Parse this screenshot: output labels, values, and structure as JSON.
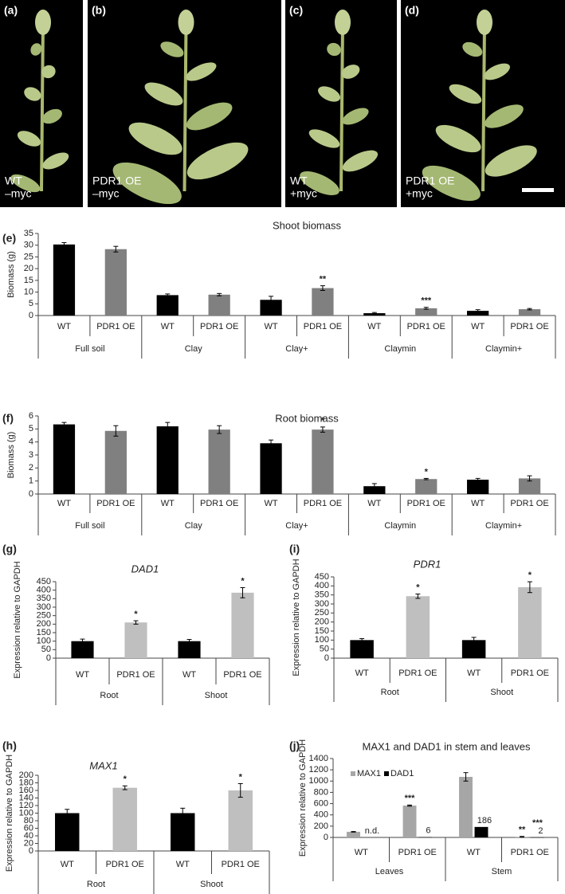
{
  "photos": [
    {
      "panel": "(a)",
      "caption": [
        "WT",
        "–myc"
      ]
    },
    {
      "panel": "(b)",
      "caption": [
        "PDR1 OE",
        "–myc"
      ]
    },
    {
      "panel": "(c)",
      "caption": [
        "WT",
        "+myc"
      ]
    },
    {
      "panel": "(d)",
      "caption": [
        "PDR1 OE",
        "+myc"
      ]
    }
  ],
  "chart_data": [
    {
      "type": "bar",
      "panel": "(e)",
      "title": "Shoot biomass",
      "y_label": "Biomass (g)",
      "categories": [
        "WT",
        "PDR1 OE",
        "WT",
        "PDR1 OE",
        "WT",
        "PDR1 OE",
        "WT",
        "PDR1 OE",
        "WT",
        "PDR1 OE"
      ],
      "groups": [
        "Full soil",
        "Clay",
        "Clay+",
        "Claymin",
        "Claymin+"
      ],
      "values": [
        30.3,
        28.3,
        8.7,
        8.9,
        6.7,
        11.7,
        1.0,
        3.1,
        2.0,
        2.7
      ],
      "errors": [
        0.8,
        1.2,
        0.5,
        0.5,
        1.5,
        1.0,
        0.3,
        0.4,
        0.5,
        0.3
      ],
      "annotations": [
        null,
        null,
        null,
        null,
        null,
        "**",
        null,
        "***",
        null,
        null
      ],
      "colors": [
        "#000000",
        "#808080",
        "#000000",
        "#808080",
        "#000000",
        "#808080",
        "#000000",
        "#808080",
        "#000000",
        "#808080"
      ],
      "ylim": [
        0,
        35
      ],
      "yticks": [
        0,
        5,
        10,
        15,
        20,
        25,
        30,
        35
      ]
    },
    {
      "type": "bar",
      "panel": "(f)",
      "title": "Root biomass",
      "y_label": "Biomass (g)",
      "categories": [
        "WT",
        "PDR1 OE",
        "WT",
        "PDR1 OE",
        "WT",
        "PDR1 OE",
        "WT",
        "PDR1 OE",
        "WT",
        "PDR1 OE"
      ],
      "groups": [
        "Full soil",
        "Clay",
        "Clay+",
        "Claymin",
        "Claymin+"
      ],
      "values": [
        5.35,
        4.85,
        5.2,
        4.95,
        3.9,
        4.95,
        0.6,
        1.15,
        1.1,
        1.2
      ],
      "errors": [
        0.15,
        0.4,
        0.3,
        0.3,
        0.25,
        0.2,
        0.2,
        0.05,
        0.1,
        0.2
      ],
      "annotations": [
        null,
        null,
        null,
        null,
        null,
        "*",
        null,
        "*",
        null,
        null
      ],
      "colors": [
        "#000000",
        "#808080",
        "#000000",
        "#808080",
        "#000000",
        "#808080",
        "#000000",
        "#808080",
        "#000000",
        "#808080"
      ],
      "ylim": [
        0,
        6
      ],
      "yticks": [
        0,
        1,
        2,
        3,
        4,
        5,
        6
      ]
    },
    {
      "type": "bar",
      "panel": "(g)",
      "title": "DAD1",
      "y_label": "Expression relative to GAPDH",
      "categories": [
        "WT",
        "PDR1 OE",
        "WT",
        "PDR1 OE"
      ],
      "groups": [
        "Root",
        "Shoot"
      ],
      "values": [
        100,
        210,
        100,
        385
      ],
      "errors": [
        12,
        10,
        10,
        30
      ],
      "annotations": [
        null,
        "*",
        null,
        "*"
      ],
      "colors": [
        "#000000",
        "#bfbfbf",
        "#000000",
        "#bfbfbf"
      ],
      "ylim": [
        0,
        450
      ],
      "yticks": [
        0,
        50,
        100,
        150,
        200,
        250,
        300,
        350,
        400,
        450
      ]
    },
    {
      "type": "bar",
      "panel": "(i)",
      "title": "PDR1",
      "y_label": "Expression relative to GAPDH",
      "categories": [
        "WT",
        "PDR1  OE",
        "WT",
        "PDR1  OE"
      ],
      "groups": [
        "Root",
        "Shoot"
      ],
      "values": [
        100,
        343,
        100,
        393
      ],
      "errors": [
        8,
        12,
        15,
        30
      ],
      "annotations": [
        null,
        "*",
        null,
        "*"
      ],
      "colors": [
        "#000000",
        "#bfbfbf",
        "#000000",
        "#bfbfbf"
      ],
      "ylim": [
        0,
        450
      ],
      "yticks": [
        0,
        50,
        100,
        150,
        200,
        250,
        300,
        350,
        400,
        450
      ]
    },
    {
      "type": "bar",
      "panel": "(h)",
      "title": "MAX1",
      "y_label": "Expression relative to GAPDH",
      "categories": [
        "WT",
        "PDR1 OE",
        "WT",
        "PDR1 OE"
      ],
      "groups": [
        "Root",
        "Shoot"
      ],
      "values": [
        100,
        167,
        100,
        160
      ],
      "errors": [
        10,
        5,
        13,
        18
      ],
      "annotations": [
        null,
        "*",
        null,
        "*"
      ],
      "colors": [
        "#000000",
        "#bfbfbf",
        "#000000",
        "#bfbfbf"
      ],
      "ylim": [
        0,
        200
      ],
      "yticks": [
        0,
        20,
        40,
        60,
        80,
        100,
        120,
        140,
        160,
        180,
        200
      ]
    },
    {
      "type": "bar",
      "panel": "(j)",
      "title": "MAX1 and DAD1 in stem and leaves",
      "y_label": "Expression relative to GAPDH",
      "categories": [
        "WT",
        "PDR1 OE",
        "WT",
        "PDR1 OE"
      ],
      "groups": [
        "Leaves",
        "Stem"
      ],
      "series": [
        {
          "name": "MAX1",
          "color": "#a6a6a6",
          "values": [
            100,
            565,
            1075,
            10
          ],
          "errors": [
            5,
            10,
            75,
            8
          ],
          "annotations": [
            null,
            "***",
            null,
            "**"
          ]
        },
        {
          "name": "DAD1",
          "color": "#000000",
          "values": [
            null,
            6,
            186,
            2
          ],
          "value_labels": [
            "n.d.",
            "6",
            "186",
            "2"
          ],
          "annotations": [
            null,
            null,
            null,
            "***"
          ]
        }
      ],
      "legend": "upper left",
      "ylim": [
        0,
        1400
      ],
      "yticks": [
        0,
        200,
        400,
        600,
        800,
        1000,
        1200,
        1400
      ]
    }
  ]
}
